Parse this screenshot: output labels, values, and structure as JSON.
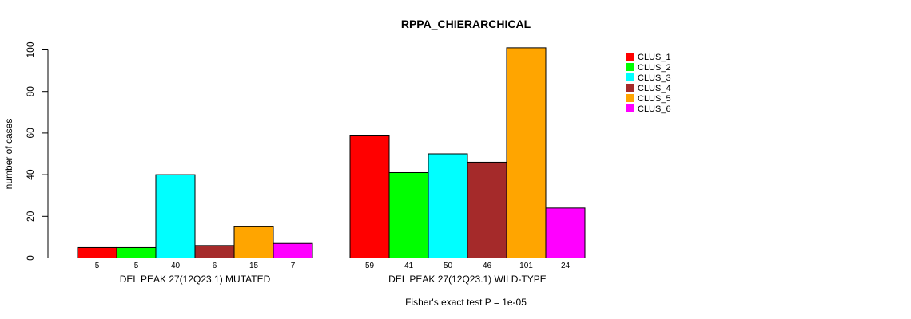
{
  "chart_data": {
    "type": "bar",
    "title": "RPPA_CHIERARCHICAL",
    "xlabel": "",
    "ylabel": "number of cases",
    "ylim": [
      0,
      100
    ],
    "yticks": [
      0,
      20,
      40,
      60,
      80,
      100
    ],
    "grid": false,
    "legend_position": "top-right",
    "groups": [
      "DEL PEAK 27(12Q23.1) MUTATED",
      "DEL PEAK 27(12Q23.1) WILD-TYPE"
    ],
    "series": [
      {
        "name": "CLUS_1",
        "color": "#ff0000",
        "values": [
          5,
          59
        ]
      },
      {
        "name": "CLUS_2",
        "color": "#00ff00",
        "values": [
          5,
          41
        ]
      },
      {
        "name": "CLUS_3",
        "color": "#00ffff",
        "values": [
          40,
          50
        ]
      },
      {
        "name": "CLUS_4",
        "color": "#a52a2a",
        "values": [
          6,
          46
        ]
      },
      {
        "name": "CLUS_5",
        "color": "#ffa500",
        "values": [
          15,
          101
        ]
      },
      {
        "name": "CLUS_6",
        "color": "#ff00ff",
        "values": [
          7,
          24
        ]
      }
    ],
    "footnote": "Fisher's exact test P = 1e-05"
  }
}
